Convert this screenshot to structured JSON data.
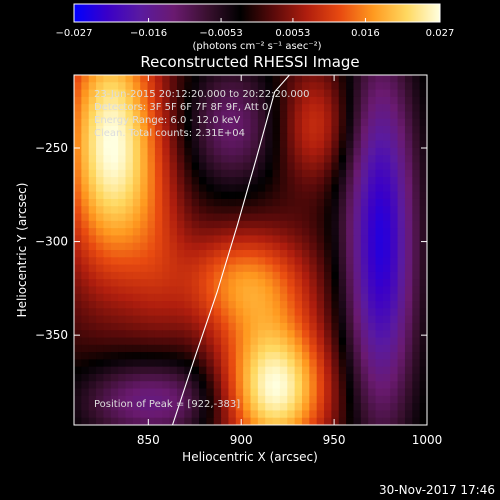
{
  "chart_data": {
    "type": "heatmap",
    "title": "Reconstructed RHESSI Image",
    "xlabel": "Heliocentric X (arcsec)",
    "ylabel": "Heliocentric Y (arcsec)",
    "xlim": [
      810,
      1000
    ],
    "ylim": [
      -398,
      -211
    ],
    "x_ticks": [
      {
        "value": 850,
        "label": "850"
      },
      {
        "value": 900,
        "label": "900"
      },
      {
        "value": 950,
        "label": "950"
      },
      {
        "value": 1000,
        "label": "1000"
      }
    ],
    "y_ticks": [
      {
        "value": -250,
        "label": "−250"
      },
      {
        "value": -300,
        "label": "−300"
      },
      {
        "value": -350,
        "label": "−350"
      }
    ],
    "colorbar": {
      "range": [
        -0.027,
        0.027
      ],
      "ticks": [
        {
          "value": -0.027,
          "label": "−0.027"
        },
        {
          "value": -0.016,
          "label": "−0.016"
        },
        {
          "value": -0.0053,
          "label": "−0.0053"
        },
        {
          "value": 0.0053,
          "label": "0.0053"
        },
        {
          "value": 0.016,
          "label": "0.016"
        },
        {
          "value": 0.027,
          "label": "0.027"
        }
      ],
      "units_label": "(photons cm⁻² s⁻¹ asec⁻²)",
      "colors": [
        "#0000ff",
        "#3a00c8",
        "#5a1aa0",
        "#6a1a70",
        "#3a1030",
        "#000000",
        "#5a0a0a",
        "#b01e0e",
        "#e84a10",
        "#ff9a20",
        "#ffd860",
        "#ffffe0"
      ]
    },
    "sources": [
      {
        "x": 830,
        "y": -248,
        "sx": 18,
        "sy": 48,
        "amp": 0.027
      },
      {
        "x": 918,
        "y": -378,
        "sx": 20,
        "sy": 26,
        "amp": 0.027
      },
      {
        "x": 902,
        "y": -322,
        "sx": 24,
        "sy": 20,
        "amp": 0.016
      },
      {
        "x": 940,
        "y": -238,
        "sx": 14,
        "sy": 22,
        "amp": 0.01
      },
      {
        "x": 975,
        "y": -300,
        "sx": 14,
        "sy": 70,
        "amp": -0.024
      },
      {
        "x": 895,
        "y": -238,
        "sx": 18,
        "sy": 24,
        "amp": -0.012
      },
      {
        "x": 860,
        "y": -385,
        "sx": 22,
        "sy": 16,
        "amp": -0.012
      },
      {
        "x": 855,
        "y": -300,
        "sx": 12,
        "sy": 40,
        "amp": 0.005
      },
      {
        "x": 830,
        "y": -385,
        "sx": 20,
        "sy": 16,
        "amp": -0.006
      }
    ],
    "annotations": [
      "23-Jun-2015 20:12:20.000 to 20:22:20.000",
      "Detectors: 3F 5F 6F 7F 8F 9F, Att 0",
      "Energy Range: 6.0 - 12.0 keV",
      "Clean. Total counts: 2.31E+04",
      "Position of Peak = [922,-383]"
    ],
    "limb": {
      "x": [
        863,
        875,
        887,
        898,
        908,
        918,
        926
      ],
      "y": [
        -398,
        -362,
        -327,
        -291,
        -256,
        -220,
        -211
      ]
    }
  },
  "timestamp": "30-Nov-2017 17:46"
}
